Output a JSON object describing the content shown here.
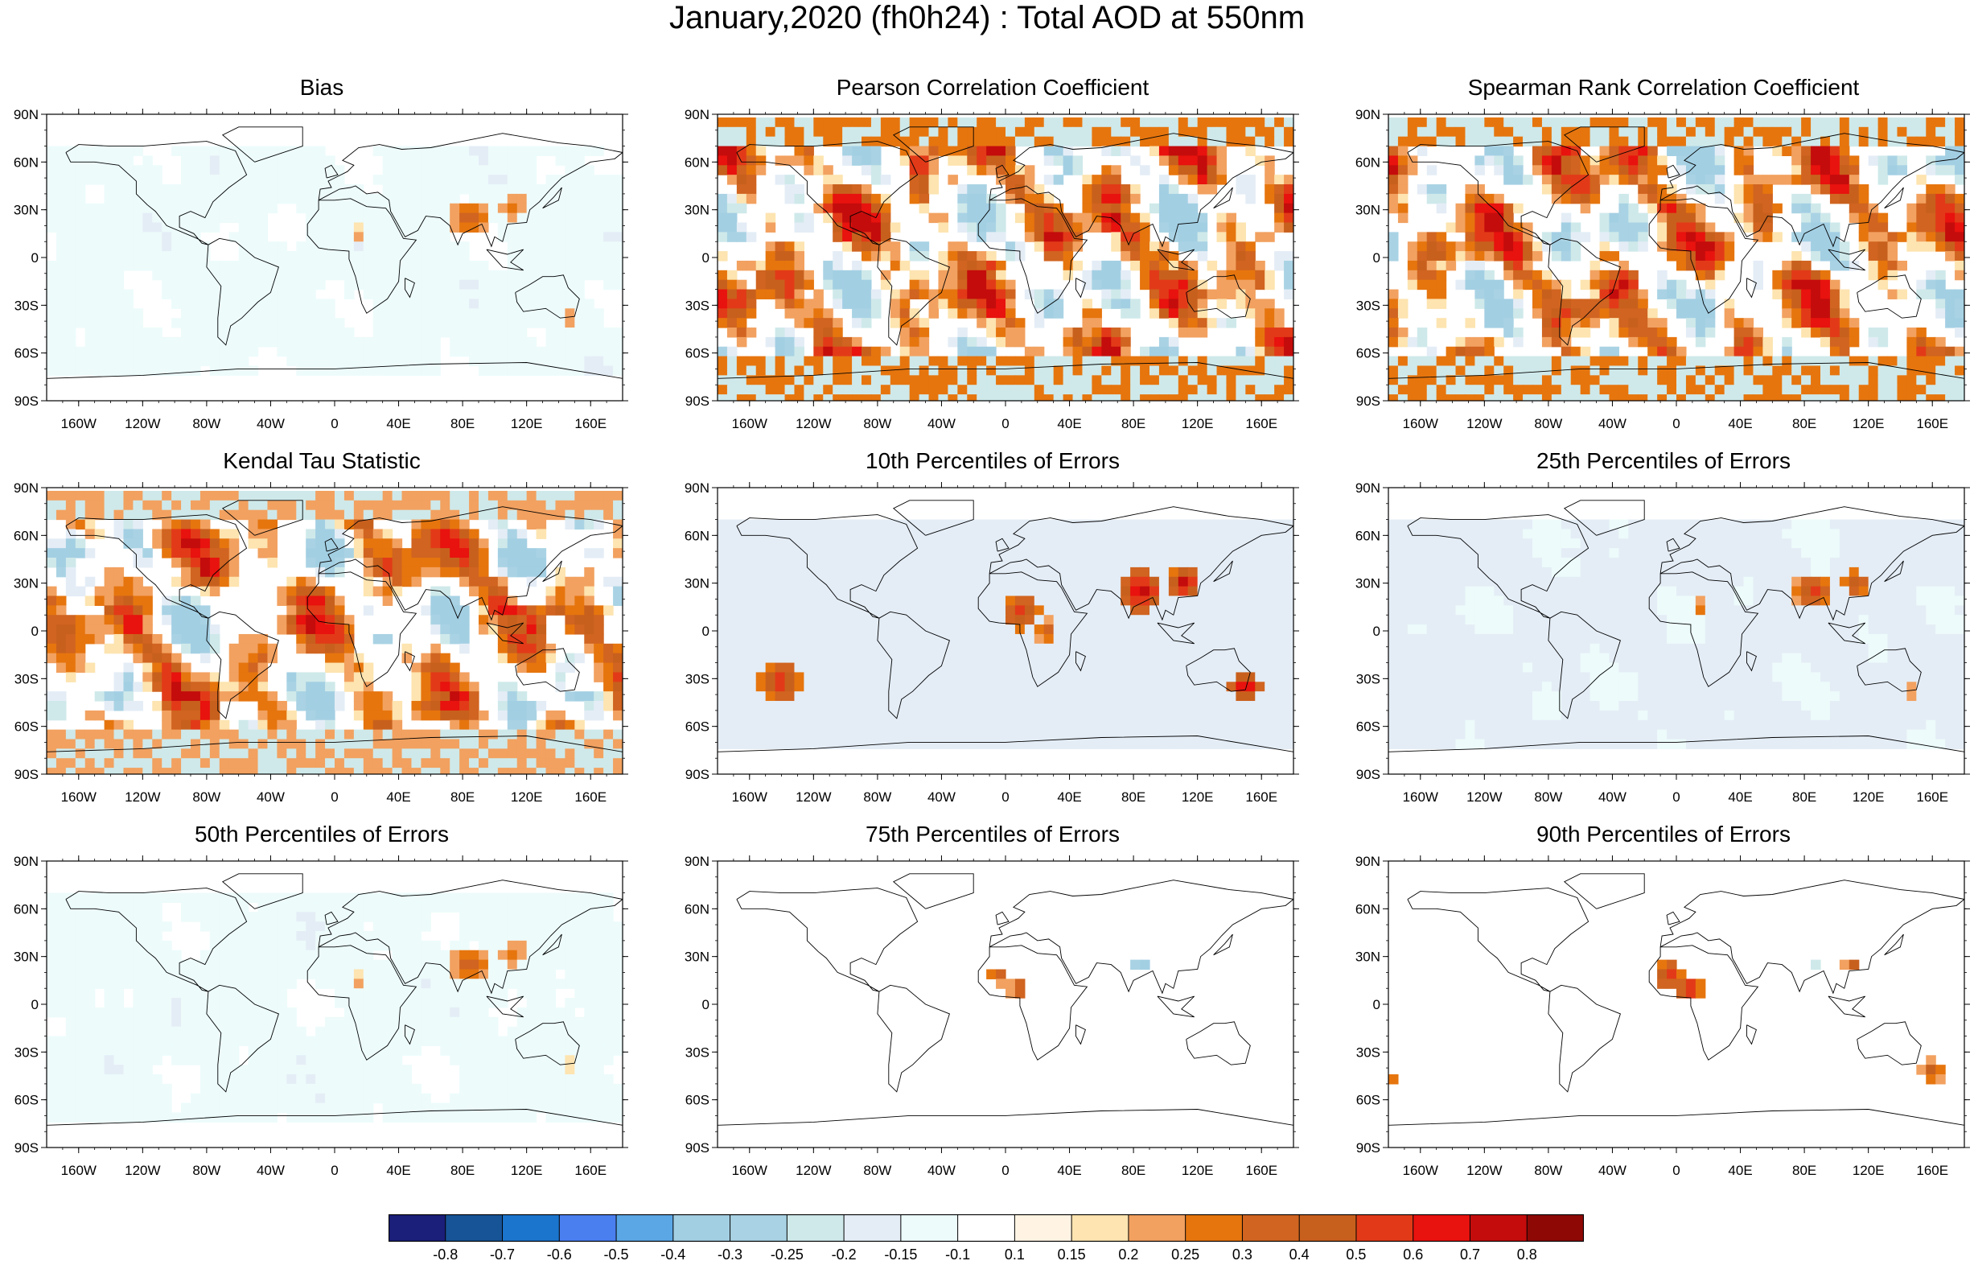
{
  "title": "January,2020 (fh0h24) : Total AOD at 550nm",
  "map": {
    "lat_labels": [
      "90N",
      "60N",
      "30N",
      "0",
      "30S",
      "60S",
      "90S"
    ],
    "lon_labels": [
      "160W",
      "120W",
      "80W",
      "40W",
      "0",
      "40E",
      "80E",
      "120E",
      "160E"
    ],
    "lon_values": [
      -160,
      -120,
      -80,
      -40,
      0,
      40,
      80,
      120,
      160
    ],
    "lat_values": [
      90,
      60,
      30,
      0,
      -30,
      -60,
      -90
    ],
    "lon_range": [
      -180,
      180
    ],
    "lat_range": [
      -90,
      90
    ],
    "projection": "cylindrical equidistant"
  },
  "panels": [
    {
      "title": "Bias",
      "kind": "blue",
      "intensity": 0.35,
      "hotspots": [
        {
          "lon": 85,
          "lat": 25,
          "r": 12,
          "level": 0.55
        },
        {
          "lon": 112,
          "lat": 32,
          "r": 8,
          "level": 0.45
        },
        {
          "lon": 15,
          "lat": 15,
          "r": 5,
          "level": 0.4
        },
        {
          "lon": 148,
          "lat": -38,
          "r": 4,
          "level": 0.45
        }
      ]
    },
    {
      "title": "Pearson Correlation Coefficient",
      "kind": "mixed",
      "intensity": 1.0,
      "hotspots": []
    },
    {
      "title": "Spearman Rank Correlation Coefficient",
      "kind": "mixed",
      "intensity": 1.0,
      "hotspots": []
    },
    {
      "title": "Kendal Tau Statistic",
      "kind": "mixed",
      "intensity": 0.85,
      "hotspots": []
    },
    {
      "title": "10th Percentiles of Errors",
      "kind": "blue",
      "intensity": 0.6,
      "hotspots": [
        {
          "lon": 85,
          "lat": 25,
          "r": 14,
          "level": 1.0
        },
        {
          "lon": 112,
          "lat": 30,
          "r": 10,
          "level": 1.0
        },
        {
          "lon": 10,
          "lat": 12,
          "r": 12,
          "level": 0.75
        },
        {
          "lon": -140,
          "lat": -32,
          "r": 14,
          "level": 0.8
        },
        {
          "lon": 150,
          "lat": -35,
          "r": 10,
          "level": 0.95
        },
        {
          "lon": 25,
          "lat": 0,
          "r": 8,
          "level": 0.55
        }
      ]
    },
    {
      "title": "25th Percentiles of Errors",
      "kind": "blue",
      "intensity": 0.45,
      "hotspots": [
        {
          "lon": 85,
          "lat": 25,
          "r": 12,
          "level": 0.75
        },
        {
          "lon": 112,
          "lat": 30,
          "r": 8,
          "level": 0.7
        },
        {
          "lon": 15,
          "lat": 15,
          "r": 6,
          "level": 0.5
        },
        {
          "lon": 148,
          "lat": -38,
          "r": 4,
          "level": 0.55
        }
      ]
    },
    {
      "title": "50th Percentiles of Errors",
      "kind": "blue",
      "intensity": 0.35,
      "hotspots": [
        {
          "lon": 85,
          "lat": 25,
          "r": 12,
          "level": 0.55
        },
        {
          "lon": 112,
          "lat": 32,
          "r": 8,
          "level": 0.45
        },
        {
          "lon": 15,
          "lat": 15,
          "r": 5,
          "level": 0.4
        },
        {
          "lon": 148,
          "lat": -38,
          "r": 4,
          "level": 0.4
        }
      ]
    },
    {
      "title": "75th Percentiles of Errors",
      "kind": "sparse",
      "intensity": 0.3,
      "hotspots": [
        {
          "lon": -5,
          "lat": 18,
          "r": 6,
          "level": 0.6
        },
        {
          "lon": 8,
          "lat": 10,
          "r": 6,
          "level": 0.65
        },
        {
          "lon": 85,
          "lat": 25,
          "r": 6,
          "level": -0.55
        }
      ]
    },
    {
      "title": "90th Percentiles of Errors",
      "kind": "sparse",
      "intensity": 0.4,
      "hotspots": [
        {
          "lon": -5,
          "lat": 18,
          "r": 10,
          "level": 0.75
        },
        {
          "lon": 8,
          "lat": 10,
          "r": 8,
          "level": 0.85
        },
        {
          "lon": 110,
          "lat": 25,
          "r": 6,
          "level": 0.6
        },
        {
          "lon": 160,
          "lat": -42,
          "r": 8,
          "level": 0.6
        },
        {
          "lon": -175,
          "lat": -45,
          "r": 4,
          "level": 0.55
        },
        {
          "lon": 120,
          "lat": -20,
          "r": 4,
          "level": 0.5
        },
        {
          "lon": 85,
          "lat": 25,
          "r": 4,
          "level": -0.45
        }
      ]
    }
  ],
  "colorbar": {
    "labels": [
      "-0.8",
      "-0.7",
      "-0.6",
      "-0.5",
      "-0.4",
      "-0.3",
      "-0.25",
      "-0.2",
      "-0.15",
      "-0.1",
      "0.1",
      "0.15",
      "0.2",
      "0.25",
      "0.3",
      "0.4",
      "0.5",
      "0.6",
      "0.7",
      "0.8"
    ],
    "colors": [
      "#1b1f79",
      "#175497",
      "#1c75cd",
      "#4a7ff0",
      "#5ba7e6",
      "#a3cfe3",
      "#a9d3e4",
      "#cfe9ea",
      "#e4edf6",
      "#edfbfb",
      "#ffffff",
      "#fff4e4",
      "#fde4b0",
      "#f2a160",
      "#e6750e",
      "#d06420",
      "#c8601d",
      "#e23a18",
      "#e8120e",
      "#c40c0c",
      "#8e0806"
    ]
  }
}
